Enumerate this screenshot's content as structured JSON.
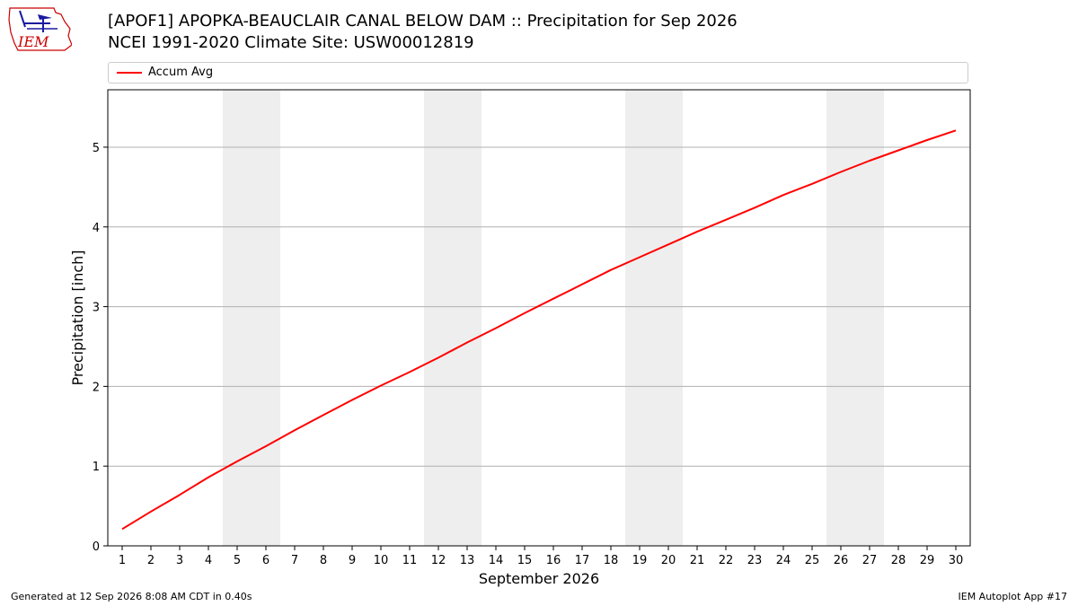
{
  "header": {
    "title_line1": "[APOF1] APOPKA-BEAUCLAIR CANAL BELOW DAM :: Precipitation for Sep 2026",
    "title_line2": "NCEI 1991-2020 Climate Site: USW00012819"
  },
  "logo": {
    "text": "IEM"
  },
  "footer": {
    "generated": "Generated at 12 Sep 2026 8:08 AM CDT in 0.40s",
    "app": "IEM Autoplot App #17"
  },
  "colors": {
    "series": "#ff0000",
    "weekend_band": "#eeeeee",
    "grid": "#b0b0b0",
    "logo": "#cc0000"
  },
  "chart_data": {
    "type": "line",
    "xlabel": "September 2026",
    "ylabel": "Precipitation [inch]",
    "xlim": [
      0.5,
      30.5
    ],
    "ylim": [
      0,
      5.72
    ],
    "x_ticks": [
      1,
      2,
      3,
      4,
      5,
      6,
      7,
      8,
      9,
      10,
      11,
      12,
      13,
      14,
      15,
      16,
      17,
      18,
      19,
      20,
      21,
      22,
      23,
      24,
      25,
      26,
      27,
      28,
      29,
      30
    ],
    "y_ticks": [
      0,
      1,
      2,
      3,
      4,
      5
    ],
    "grid": "horizontal",
    "legend_position": "top",
    "shaded_day_ranges": [
      [
        5,
        6
      ],
      [
        12,
        13
      ],
      [
        19,
        20
      ],
      [
        26,
        27
      ]
    ],
    "series": [
      {
        "name": "Accum Avg",
        "x": [
          1,
          2,
          3,
          4,
          5,
          6,
          7,
          8,
          9,
          10,
          11,
          12,
          13,
          14,
          15,
          16,
          17,
          18,
          19,
          20,
          21,
          22,
          23,
          24,
          25,
          26,
          27,
          28,
          29,
          30
        ],
        "values": [
          0.21,
          0.43,
          0.64,
          0.86,
          1.06,
          1.25,
          1.45,
          1.64,
          1.83,
          2.01,
          2.18,
          2.36,
          2.55,
          2.73,
          2.92,
          3.1,
          3.28,
          3.46,
          3.62,
          3.78,
          3.94,
          4.09,
          4.24,
          4.4,
          4.54,
          4.69,
          4.83,
          4.96,
          5.09,
          5.21
        ]
      }
    ]
  }
}
